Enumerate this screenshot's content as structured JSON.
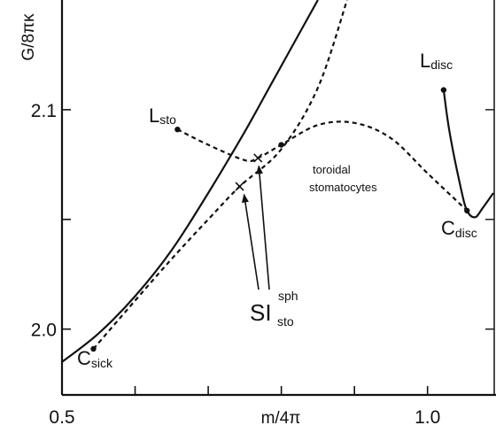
{
  "chart_data": {
    "type": "line",
    "xlabel": "m/4π",
    "ylabel": "G/8πκ",
    "xlim": [
      0.5,
      1.09
    ],
    "ylim": [
      1.97,
      2.15
    ],
    "x_ticks": [
      0.5,
      0.6,
      0.7,
      0.8,
      0.9,
      1.0
    ],
    "x_tick_labels": [
      "0.5",
      "",
      "",
      "",
      "",
      "1.0"
    ],
    "y_ticks": [
      2.0,
      2.05,
      2.1
    ],
    "y_tick_labels": [
      "2.0",
      "",
      "2.1"
    ],
    "grid": false,
    "series": [
      {
        "style": "solid",
        "points": [
          [
            0.5,
            1.985
          ],
          [
            0.55,
            1.998
          ],
          [
            0.6,
            2.015
          ],
          [
            0.65,
            2.036
          ],
          [
            0.7,
            2.062
          ],
          [
            0.75,
            2.09
          ],
          [
            0.79,
            2.114
          ],
          [
            0.82,
            2.132
          ],
          [
            0.85,
            2.15
          ]
        ]
      },
      {
        "style": "dashed",
        "points": [
          [
            0.543,
            1.991
          ],
          [
            0.6,
            2.013
          ],
          [
            0.65,
            2.032
          ],
          [
            0.7,
            2.05
          ],
          [
            0.743,
            2.065
          ],
          [
            0.8,
            2.082
          ],
          [
            0.85,
            2.11
          ],
          [
            0.89,
            2.15
          ]
        ]
      },
      {
        "style": "dashed",
        "points": [
          [
            0.658,
            2.091
          ],
          [
            0.7,
            2.084
          ],
          [
            0.75,
            2.077
          ],
          [
            0.768,
            2.078
          ],
          [
            0.8,
            2.084
          ],
          [
            0.85,
            2.093
          ],
          [
            0.9,
            2.094
          ],
          [
            0.95,
            2.087
          ],
          [
            1.0,
            2.071
          ],
          [
            1.054,
            2.054
          ]
        ]
      },
      {
        "style": "solid",
        "points": [
          [
            1.022,
            2.109
          ],
          [
            1.03,
            2.09
          ],
          [
            1.045,
            2.065
          ],
          [
            1.054,
            2.054
          ],
          [
            1.065,
            2.051
          ],
          [
            1.075,
            2.055
          ],
          [
            1.09,
            2.062
          ]
        ]
      }
    ],
    "points": [
      {
        "x": 0.543,
        "y": 1.991,
        "marker": "dot"
      },
      {
        "x": 0.658,
        "y": 2.091,
        "marker": "dot"
      },
      {
        "x": 0.8,
        "y": 2.084,
        "marker": "dot"
      },
      {
        "x": 1.022,
        "y": 2.109,
        "marker": "dot"
      },
      {
        "x": 1.054,
        "y": 2.054,
        "marker": "dot"
      },
      {
        "x": 0.743,
        "y": 2.065,
        "marker": "cross"
      },
      {
        "x": 0.768,
        "y": 2.078,
        "marker": "cross"
      }
    ],
    "annotations": {
      "l_sto": {
        "main": "L",
        "sub": "sto"
      },
      "l_disc": {
        "main": "L",
        "sub": "disc"
      },
      "c_sick": {
        "main": "C",
        "sub": "sick"
      },
      "c_disc": {
        "main": "C",
        "sub": "disc"
      },
      "si_sto": {
        "main": "SI",
        "sub": "sto",
        "sup": "sph"
      },
      "toroidal_line1": "toroidal",
      "toroidal_line2": "stomatocytes"
    }
  }
}
